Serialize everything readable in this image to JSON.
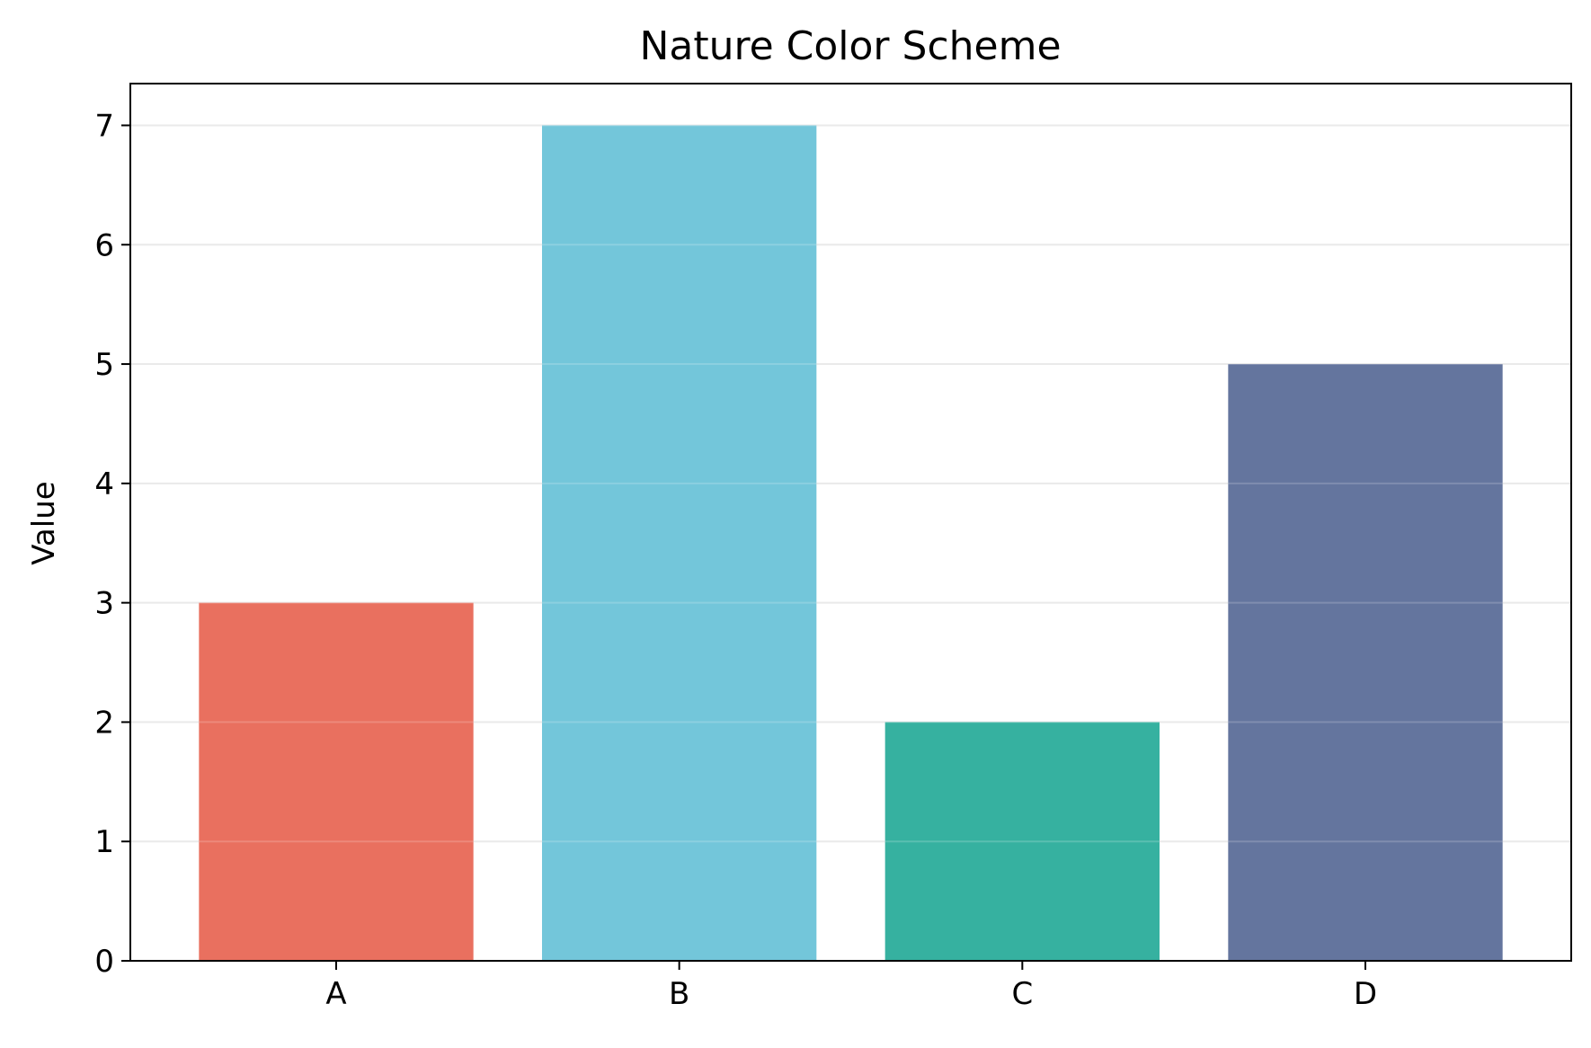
{
  "chart_data": {
    "type": "bar",
    "title": "Nature Color Scheme",
    "xlabel": "",
    "ylabel": "Value",
    "categories": [
      "A",
      "B",
      "C",
      "D"
    ],
    "values": [
      3,
      7,
      2,
      5
    ],
    "colors": [
      "#E9705F",
      "#73C6DA",
      "#36B1A0",
      "#64759E"
    ],
    "ylim": [
      0,
      7.35
    ],
    "yticks": [
      0,
      1,
      2,
      3,
      4,
      5,
      6,
      7
    ],
    "grid": {
      "axis": "y",
      "color": "#e6e6e6"
    },
    "legend": "none"
  }
}
